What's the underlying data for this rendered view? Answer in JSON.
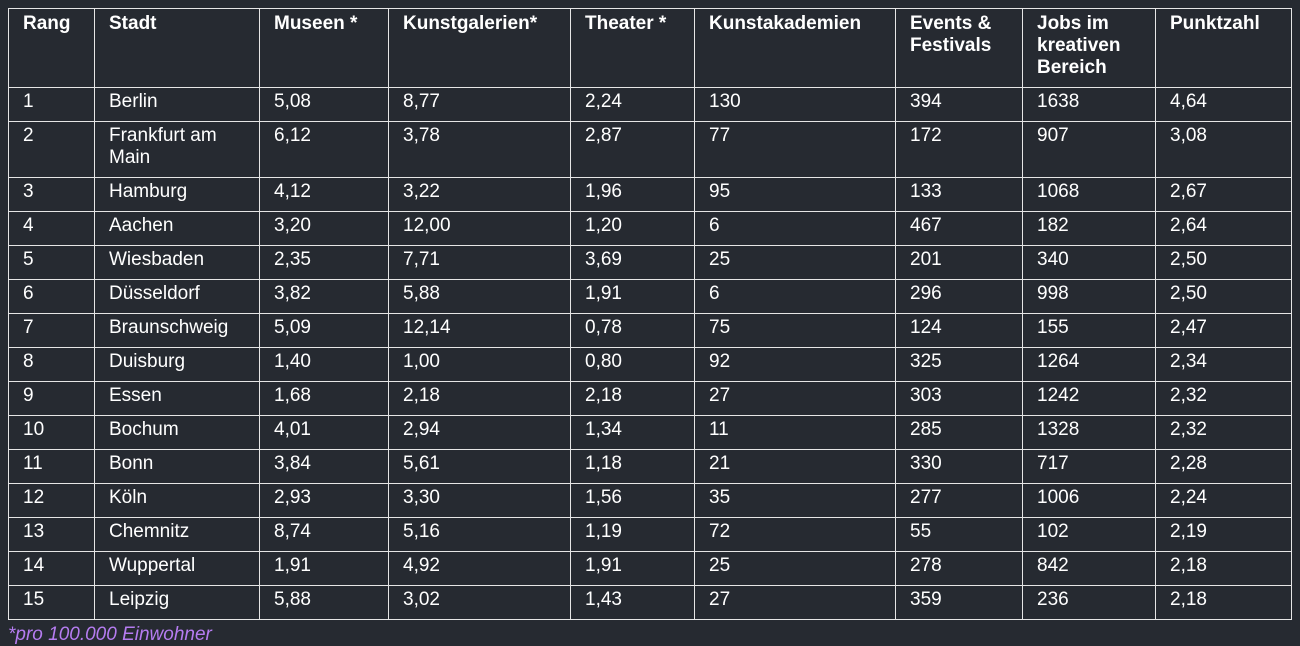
{
  "table": {
    "header": [
      "Rang",
      "Stadt",
      "Museen *",
      "Kunstgalerien*",
      "Theater *",
      "Kunstakademien",
      "Events & Festivals",
      "Jobs im kreativen Bereich",
      "Punktzahl"
    ],
    "rows": [
      [
        "1",
        "Berlin",
        "5,08",
        "8,77",
        "2,24",
        "130",
        "394",
        "1638",
        "4,64"
      ],
      [
        "2",
        "Frankfurt am Main",
        "6,12",
        "3,78",
        "2,87",
        "77",
        "172",
        "907",
        "3,08"
      ],
      [
        "3",
        "Hamburg",
        "4,12",
        "3,22",
        "1,96",
        "95",
        "133",
        "1068",
        "2,67"
      ],
      [
        "4",
        "Aachen",
        "3,20",
        "12,00",
        "1,20",
        "6",
        "467",
        "182",
        "2,64"
      ],
      [
        "5",
        "Wiesbaden",
        "2,35",
        "7,71",
        "3,69",
        "25",
        "201",
        "340",
        "2,50"
      ],
      [
        "6",
        "Düsseldorf",
        "3,82",
        "5,88",
        "1,91",
        "6",
        "296",
        "998",
        "2,50"
      ],
      [
        "7",
        "Braunschweig",
        "5,09",
        "12,14",
        "0,78",
        "75",
        "124",
        "155",
        "2,47"
      ],
      [
        "8",
        "Duisburg",
        "1,40",
        "1,00",
        "0,80",
        "92",
        "325",
        "1264",
        "2,34"
      ],
      [
        "9",
        "Essen",
        "1,68",
        "2,18",
        "2,18",
        "27",
        "303",
        "1242",
        "2,32"
      ],
      [
        "10",
        "Bochum",
        "4,01",
        "2,94",
        "1,34",
        "11",
        "285",
        "1328",
        "2,32"
      ],
      [
        "11",
        "Bonn",
        "3,84",
        "5,61",
        "1,18",
        "21",
        "330",
        "717",
        "2,28"
      ],
      [
        "12",
        "Köln",
        "2,93",
        "3,30",
        "1,56",
        "35",
        "277",
        "1006",
        "2,24"
      ],
      [
        "13",
        "Chemnitz",
        "8,74",
        "5,16",
        "1,19",
        "72",
        "55",
        "102",
        "2,19"
      ],
      [
        "14",
        "Wuppertal",
        "1,91",
        "4,92",
        "1,91",
        "25",
        "278",
        "842",
        "2,18"
      ],
      [
        "15",
        "Leipzig",
        "5,88",
        "3,02",
        "1,43",
        "27",
        "359",
        "236",
        "2,18"
      ]
    ]
  },
  "footnote": "*pro 100.000 Einwohner"
}
